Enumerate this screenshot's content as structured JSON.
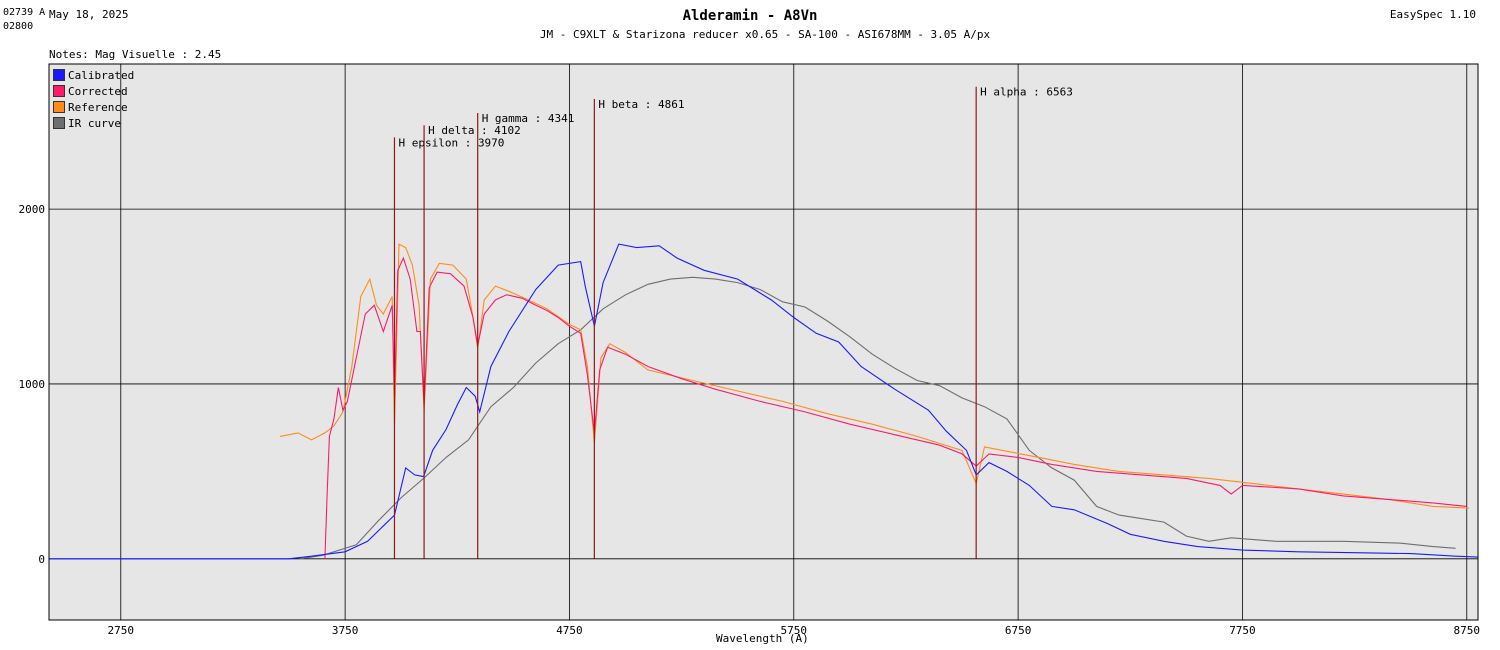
{
  "header": {
    "cursor_x": "02739 A",
    "cursor_y": "02800",
    "date": "May 18, 2025",
    "app": "EasySpec 1.10",
    "title": "Alderamin - A8Vn",
    "subtitle": "JM - C9XLT & Starizona reducer x0.65 - SA-100 - ASI678MM - 3.05 A/px",
    "notes": "Notes: Mag Visuelle : 2.45"
  },
  "colors": {
    "background": "#e6e6e6",
    "calibrated": "#1a1aff",
    "corrected": "#ff1a6e",
    "reference": "#ff8c1a",
    "ir_curve": "#6e6e6e",
    "line_marker": "#8b1a1a",
    "grid": "#000000"
  },
  "chart_data": {
    "type": "line",
    "title": "Alderamin - A8Vn",
    "xlabel": "Wavelength (A)",
    "ylabel": "",
    "xlim": [
      2430,
      8800
    ],
    "ylim": [
      -350,
      2830
    ],
    "x_ticks": [
      2750,
      3750,
      4750,
      5750,
      6750,
      7750,
      8750
    ],
    "y_ticks": [
      0,
      1000,
      2000
    ],
    "legend": [
      "Calibrated",
      "Corrected",
      "Reference",
      "IR curve"
    ],
    "legend_position": "top-left",
    "grid": true,
    "spectral_lines": [
      {
        "label": "H epsilon : 3970",
        "x": 3970,
        "top": 2410
      },
      {
        "label": "H delta : 4102",
        "x": 4102,
        "top": 2480
      },
      {
        "label": "H gamma : 4341",
        "x": 4341,
        "top": 2550
      },
      {
        "label": "H beta : 4861",
        "x": 4861,
        "top": 2630
      },
      {
        "label": "H alpha : 6563",
        "x": 6563,
        "top": 2700
      }
    ],
    "series": [
      {
        "name": "Calibrated",
        "points": [
          [
            2430,
            0
          ],
          [
            3500,
            0
          ],
          [
            3600,
            15
          ],
          [
            3750,
            40
          ],
          [
            3850,
            100
          ],
          [
            3930,
            200
          ],
          [
            3970,
            250
          ],
          [
            4020,
            520
          ],
          [
            4060,
            480
          ],
          [
            4100,
            470
          ],
          [
            4140,
            620
          ],
          [
            4200,
            740
          ],
          [
            4250,
            880
          ],
          [
            4290,
            980
          ],
          [
            4330,
            930
          ],
          [
            4350,
            840
          ],
          [
            4400,
            1100
          ],
          [
            4480,
            1300
          ],
          [
            4600,
            1540
          ],
          [
            4700,
            1680
          ],
          [
            4800,
            1700
          ],
          [
            4820,
            1560
          ],
          [
            4861,
            1330
          ],
          [
            4900,
            1580
          ],
          [
            4970,
            1800
          ],
          [
            5050,
            1780
          ],
          [
            5150,
            1790
          ],
          [
            5230,
            1720
          ],
          [
            5350,
            1650
          ],
          [
            5500,
            1600
          ],
          [
            5650,
            1480
          ],
          [
            5750,
            1380
          ],
          [
            5850,
            1290
          ],
          [
            5950,
            1240
          ],
          [
            6050,
            1100
          ],
          [
            6200,
            970
          ],
          [
            6350,
            850
          ],
          [
            6430,
            730
          ],
          [
            6520,
            620
          ],
          [
            6563,
            480
          ],
          [
            6620,
            550
          ],
          [
            6700,
            500
          ],
          [
            6800,
            420
          ],
          [
            6900,
            300
          ],
          [
            7000,
            280
          ],
          [
            7150,
            200
          ],
          [
            7250,
            140
          ],
          [
            7400,
            100
          ],
          [
            7550,
            70
          ],
          [
            7750,
            50
          ],
          [
            8000,
            40
          ],
          [
            8250,
            35
          ],
          [
            8500,
            30
          ],
          [
            8700,
            15
          ],
          [
            8800,
            10
          ]
        ]
      },
      {
        "name": "Corrected",
        "points": [
          [
            3660,
            0
          ],
          [
            3670,
            380
          ],
          [
            3680,
            700
          ],
          [
            3700,
            800
          ],
          [
            3720,
            980
          ],
          [
            3740,
            850
          ],
          [
            3760,
            900
          ],
          [
            3800,
            1150
          ],
          [
            3840,
            1400
          ],
          [
            3880,
            1450
          ],
          [
            3920,
            1300
          ],
          [
            3960,
            1450
          ],
          [
            3970,
            920
          ],
          [
            3985,
            1650
          ],
          [
            4010,
            1720
          ],
          [
            4040,
            1600
          ],
          [
            4070,
            1300
          ],
          [
            4085,
            1300
          ],
          [
            4102,
            880
          ],
          [
            4125,
            1550
          ],
          [
            4160,
            1640
          ],
          [
            4220,
            1630
          ],
          [
            4280,
            1560
          ],
          [
            4320,
            1380
          ],
          [
            4341,
            1220
          ],
          [
            4370,
            1400
          ],
          [
            4420,
            1480
          ],
          [
            4470,
            1510
          ],
          [
            4540,
            1490
          ],
          [
            4600,
            1450
          ],
          [
            4650,
            1420
          ],
          [
            4700,
            1380
          ],
          [
            4750,
            1330
          ],
          [
            4800,
            1290
          ],
          [
            4830,
            1050
          ],
          [
            4861,
            720
          ],
          [
            4885,
            1080
          ],
          [
            4920,
            1210
          ],
          [
            5000,
            1170
          ],
          [
            5100,
            1100
          ],
          [
            5250,
            1030
          ],
          [
            5400,
            970
          ],
          [
            5600,
            900
          ],
          [
            5800,
            840
          ],
          [
            6000,
            770
          ],
          [
            6200,
            710
          ],
          [
            6400,
            650
          ],
          [
            6500,
            600
          ],
          [
            6563,
            530
          ],
          [
            6620,
            600
          ],
          [
            6750,
            580
          ],
          [
            6900,
            540
          ],
          [
            7100,
            500
          ],
          [
            7300,
            480
          ],
          [
            7500,
            460
          ],
          [
            7650,
            420
          ],
          [
            7700,
            370
          ],
          [
            7750,
            420
          ],
          [
            8000,
            400
          ],
          [
            8200,
            360
          ],
          [
            8400,
            340
          ],
          [
            8600,
            320
          ],
          [
            8750,
            300
          ]
        ]
      },
      {
        "name": "Reference",
        "points": [
          [
            3460,
            700
          ],
          [
            3540,
            720
          ],
          [
            3600,
            680
          ],
          [
            3660,
            720
          ],
          [
            3700,
            760
          ],
          [
            3740,
            840
          ],
          [
            3780,
            1100
          ],
          [
            3820,
            1500
          ],
          [
            3860,
            1600
          ],
          [
            3890,
            1450
          ],
          [
            3920,
            1400
          ],
          [
            3960,
            1500
          ],
          [
            3970,
            760
          ],
          [
            3990,
            1800
          ],
          [
            4020,
            1780
          ],
          [
            4050,
            1680
          ],
          [
            4080,
            1450
          ],
          [
            4102,
            840
          ],
          [
            4130,
            1600
          ],
          [
            4170,
            1690
          ],
          [
            4230,
            1680
          ],
          [
            4290,
            1600
          ],
          [
            4320,
            1380
          ],
          [
            4341,
            1200
          ],
          [
            4370,
            1480
          ],
          [
            4420,
            1560
          ],
          [
            4480,
            1530
          ],
          [
            4550,
            1490
          ],
          [
            4650,
            1430
          ],
          [
            4750,
            1340
          ],
          [
            4800,
            1310
          ],
          [
            4830,
            1100
          ],
          [
            4861,
            660
          ],
          [
            4890,
            1150
          ],
          [
            4930,
            1230
          ],
          [
            5000,
            1180
          ],
          [
            5100,
            1080
          ],
          [
            5300,
            1020
          ],
          [
            5500,
            960
          ],
          [
            5700,
            900
          ],
          [
            5900,
            830
          ],
          [
            6100,
            770
          ],
          [
            6300,
            700
          ],
          [
            6500,
            620
          ],
          [
            6563,
            430
          ],
          [
            6600,
            640
          ],
          [
            6800,
            590
          ],
          [
            7000,
            540
          ],
          [
            7200,
            500
          ],
          [
            7400,
            480
          ],
          [
            7600,
            460
          ],
          [
            7800,
            430
          ],
          [
            8000,
            400
          ],
          [
            8200,
            370
          ],
          [
            8400,
            340
          ],
          [
            8600,
            300
          ],
          [
            8760,
            290
          ]
        ]
      },
      {
        "name": "IR curve",
        "points": [
          [
            3550,
            0
          ],
          [
            3650,
            20
          ],
          [
            3800,
            80
          ],
          [
            3900,
            220
          ],
          [
            4000,
            350
          ],
          [
            4100,
            460
          ],
          [
            4200,
            580
          ],
          [
            4300,
            680
          ],
          [
            4400,
            870
          ],
          [
            4500,
            980
          ],
          [
            4600,
            1120
          ],
          [
            4700,
            1230
          ],
          [
            4800,
            1310
          ],
          [
            4900,
            1430
          ],
          [
            5000,
            1510
          ],
          [
            5100,
            1570
          ],
          [
            5200,
            1600
          ],
          [
            5300,
            1610
          ],
          [
            5400,
            1600
          ],
          [
            5500,
            1580
          ],
          [
            5600,
            1540
          ],
          [
            5700,
            1470
          ],
          [
            5800,
            1440
          ],
          [
            5900,
            1360
          ],
          [
            6000,
            1270
          ],
          [
            6100,
            1170
          ],
          [
            6200,
            1090
          ],
          [
            6300,
            1020
          ],
          [
            6400,
            990
          ],
          [
            6500,
            920
          ],
          [
            6600,
            870
          ],
          [
            6700,
            800
          ],
          [
            6800,
            620
          ],
          [
            6900,
            520
          ],
          [
            7000,
            450
          ],
          [
            7100,
            300
          ],
          [
            7200,
            250
          ],
          [
            7300,
            230
          ],
          [
            7400,
            210
          ],
          [
            7500,
            130
          ],
          [
            7600,
            100
          ],
          [
            7700,
            120
          ],
          [
            7900,
            100
          ],
          [
            8200,
            100
          ],
          [
            8450,
            90
          ],
          [
            8600,
            70
          ],
          [
            8700,
            60
          ]
        ]
      }
    ]
  }
}
